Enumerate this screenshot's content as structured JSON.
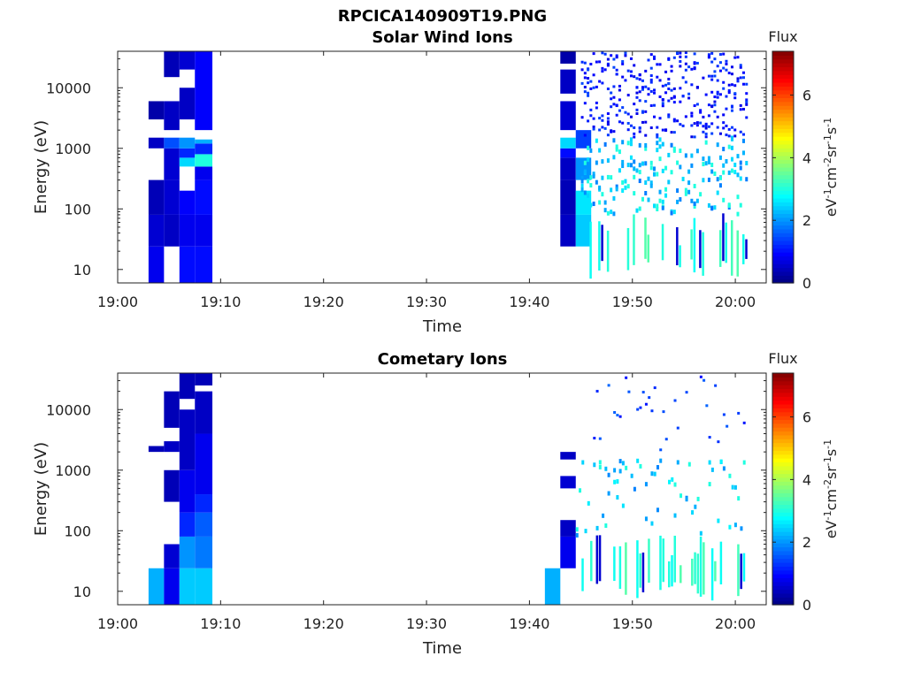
{
  "figure_title": "RPCICA140909T19.PNG",
  "chart_data": [
    {
      "type": "heatmap",
      "title": "Solar Wind Ions",
      "xlabel": "Time",
      "ylabel": "Energy (eV)",
      "x_ticks": [
        "19:00",
        "19:10",
        "19:20",
        "19:30",
        "19:40",
        "19:50",
        "20:00"
      ],
      "y_ticks": [
        "10",
        "100",
        "1000",
        "10000"
      ],
      "y_scale": "log",
      "ylim": [
        6,
        40000
      ],
      "xlim_minutes": [
        0,
        63
      ],
      "colorbar": {
        "title": "Flux",
        "ticks": [
          "0",
          "2",
          "4",
          "6"
        ],
        "range": [
          0,
          7.4
        ],
        "unit": "eV-1cm-2sr-1s-1",
        "colormap": "jet"
      },
      "bands": [
        {
          "t": [
            3.0,
            4.5
          ],
          "cells": [
            [
              6,
              24,
              0.8
            ],
            [
              24,
              80,
              0.6
            ],
            [
              80,
              300,
              0.4
            ],
            [
              1000,
              1500,
              0.5
            ],
            [
              3000,
              6000,
              0.3
            ]
          ]
        },
        {
          "t": [
            4.5,
            6.0
          ],
          "cells": [
            [
              24,
              80,
              0.5
            ],
            [
              80,
              300,
              0.6
            ],
            [
              300,
              1000,
              0.6
            ],
            [
              1000,
              1500,
              1.5
            ],
            [
              2000,
              6000,
              0.5
            ],
            [
              15000,
              40000,
              0.4
            ]
          ]
        },
        {
          "t": [
            6.0,
            7.5
          ],
          "cells": [
            [
              6,
              24,
              1.0
            ],
            [
              24,
              80,
              0.8
            ],
            [
              80,
              200,
              0.9
            ],
            [
              500,
              700,
              2.5
            ],
            [
              700,
              1000,
              1.2
            ],
            [
              1000,
              1500,
              2.0
            ],
            [
              3000,
              10000,
              0.5
            ],
            [
              20000,
              40000,
              0.6
            ]
          ]
        },
        {
          "t": [
            7.5,
            9.2
          ],
          "cells": [
            [
              6,
              24,
              1.0
            ],
            [
              24,
              80,
              0.8
            ],
            [
              80,
              300,
              1.0
            ],
            [
              300,
              500,
              0.8
            ],
            [
              500,
              800,
              3.0
            ],
            [
              800,
              1200,
              1.2
            ],
            [
              1200,
              1400,
              2.2
            ],
            [
              2000,
              40000,
              0.9
            ]
          ]
        },
        {
          "t": [
            43.0,
            44.5
          ],
          "cells": [
            [
              24,
              80,
              0.5
            ],
            [
              80,
              300,
              0.4
            ],
            [
              300,
              700,
              0.5
            ],
            [
              700,
              1000,
              1.0
            ],
            [
              1000,
              1500,
              2.5
            ],
            [
              2000,
              6000,
              0.6
            ],
            [
              8000,
              20000,
              0.5
            ],
            [
              25000,
              40000,
              0.3
            ]
          ]
        },
        {
          "t": [
            44.5,
            46.0
          ],
          "cells": [
            [
              24,
              80,
              2.4
            ],
            [
              80,
              200,
              2.6
            ],
            [
              300,
              700,
              2.0
            ],
            [
              1000,
              2000,
              1.4
            ]
          ]
        }
      ],
      "sparse": {
        "t": [
          45.0,
          61.0
        ],
        "level_high": 1.2,
        "level_mid": 2.2
      }
    },
    {
      "type": "heatmap",
      "title": "Cometary Ions",
      "xlabel": "Time",
      "ylabel": "Energy (eV)",
      "x_ticks": [
        "19:00",
        "19:10",
        "19:20",
        "19:30",
        "19:40",
        "19:50",
        "20:00"
      ],
      "y_ticks": [
        "10",
        "100",
        "1000",
        "10000"
      ],
      "y_scale": "log",
      "ylim": [
        6,
        40000
      ],
      "xlim_minutes": [
        0,
        63
      ],
      "colorbar": {
        "title": "Flux",
        "ticks": [
          "0",
          "2",
          "4",
          "6"
        ],
        "range": [
          0,
          7.4
        ],
        "unit": "eV-1cm-2sr-1s-1",
        "colormap": "jet"
      },
      "bands": [
        {
          "t": [
            3.0,
            4.5
          ],
          "cells": [
            [
              6,
              24,
              2.2
            ],
            [
              2000,
              2500,
              0.4
            ]
          ]
        },
        {
          "t": [
            4.5,
            6.0
          ],
          "cells": [
            [
              6,
              24,
              0.8
            ],
            [
              24,
              60,
              0.6
            ],
            [
              300,
              1000,
              0.4
            ],
            [
              2000,
              3000,
              0.5
            ],
            [
              5000,
              20000,
              0.4
            ]
          ]
        },
        {
          "t": [
            6.0,
            7.5
          ],
          "cells": [
            [
              6,
              24,
              2.4
            ],
            [
              24,
              80,
              2.0
            ],
            [
              80,
              200,
              1.2
            ],
            [
              200,
              1000,
              0.8
            ],
            [
              1000,
              10000,
              0.5
            ],
            [
              15000,
              40000,
              0.4
            ]
          ]
        },
        {
          "t": [
            7.5,
            9.2
          ],
          "cells": [
            [
              6,
              24,
              2.4
            ],
            [
              24,
              80,
              1.8
            ],
            [
              80,
              200,
              1.6
            ],
            [
              200,
              400,
              1.2
            ],
            [
              400,
              4000,
              0.8
            ],
            [
              4000,
              20000,
              0.5
            ],
            [
              25000,
              40000,
              0.4
            ]
          ]
        },
        {
          "t": [
            41.5,
            43.0
          ],
          "cells": [
            [
              6,
              24,
              2.2
            ]
          ]
        },
        {
          "t": [
            43.0,
            44.5
          ],
          "cells": [
            [
              24,
              80,
              0.8
            ],
            [
              80,
              150,
              0.5
            ],
            [
              500,
              800,
              0.6
            ],
            [
              1500,
              2000,
              0.5
            ]
          ]
        }
      ],
      "sparse": {
        "t": [
          44.5,
          61.0
        ],
        "level_high": 1.4,
        "level_mid": 2.3
      }
    }
  ]
}
